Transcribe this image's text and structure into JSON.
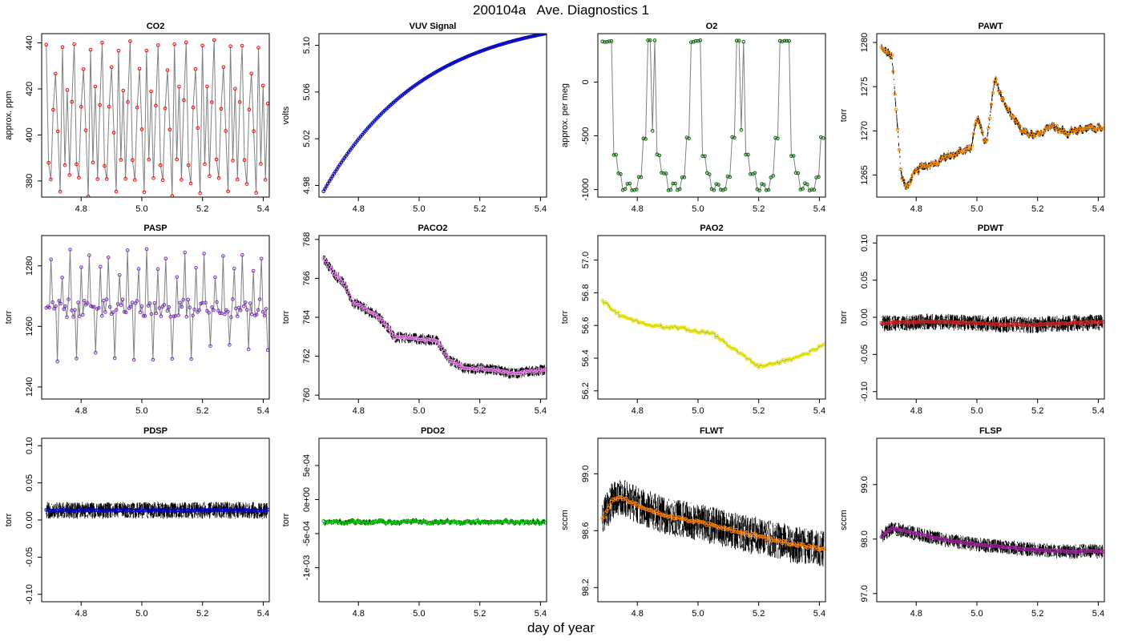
{
  "figure": {
    "title": "200104a   Ave. Diagnostics 1",
    "xlabel": "day of year"
  },
  "chart_data": [
    {
      "type": "line",
      "title": "CO2",
      "ylabel": "approx. ppm",
      "xlim": [
        4.67,
        5.42
      ],
      "ylim": [
        373,
        444
      ],
      "xticks": [
        "4.8",
        "5.0",
        "5.2",
        "5.4"
      ],
      "yticks": [
        "380",
        "400",
        "420",
        "440"
      ],
      "point_color": "#ff0000",
      "noise": 0,
      "pattern": "co2"
    },
    {
      "type": "line",
      "title": "VUV Signal",
      "ylabel": "volts",
      "xlim": [
        4.67,
        5.42
      ],
      "ylim": [
        4.97,
        5.11
      ],
      "xticks": [
        "4.8",
        "5.0",
        "5.2",
        "5.4"
      ],
      "yticks": [
        "4.98",
        "5.02",
        "5.06",
        "5.10"
      ],
      "point_color": "#0000cd",
      "noise": 0,
      "pattern": "vuv"
    },
    {
      "type": "line",
      "title": "O2",
      "ylabel": "approx. per meg",
      "xlim": [
        4.67,
        5.42
      ],
      "ylim": [
        -1070,
        450
      ],
      "xticks": [
        "4.8",
        "5.0",
        "5.2",
        "5.4"
      ],
      "yticks": [
        "-1000",
        "-500",
        "0"
      ],
      "point_color": "#006400",
      "noise": 0,
      "pattern": "o2"
    },
    {
      "type": "line",
      "title": "PAWT",
      "ylabel": "torr",
      "xlim": [
        4.67,
        5.42
      ],
      "ylim": [
        1262.5,
        1281
      ],
      "xticks": [
        "4.8",
        "5.0",
        "5.2",
        "5.4"
      ],
      "yticks": [
        "1265",
        "1270",
        "1275",
        "1280"
      ],
      "point_color": "#ff8c00",
      "noise": 0.45,
      "pattern": "pawt"
    },
    {
      "type": "line",
      "title": "PASP",
      "ylabel": "torr",
      "xlim": [
        4.67,
        5.42
      ],
      "ylim": [
        1236,
        1290
      ],
      "xticks": [
        "4.8",
        "5.0",
        "5.2",
        "5.4"
      ],
      "yticks": [
        "1240",
        "1260",
        "1280"
      ],
      "point_color": "#7b2fbe",
      "noise": 0,
      "pattern": "pasp"
    },
    {
      "type": "line",
      "title": "PACO2",
      "ylabel": "torr",
      "xlim": [
        4.67,
        5.42
      ],
      "ylim": [
        759.8,
        768.2
      ],
      "xticks": [
        "4.8",
        "5.0",
        "5.2",
        "5.4"
      ],
      "yticks": [
        "760",
        "762",
        "764",
        "766",
        "768"
      ],
      "point_color": "#ee82ee",
      "noise": 0.28,
      "pattern": "paco2"
    },
    {
      "type": "line",
      "title": "PAO2",
      "ylabel": "torr",
      "xlim": [
        4.67,
        5.42
      ],
      "ylim": [
        56.15,
        57.15
      ],
      "xticks": [
        "4.8",
        "5.0",
        "5.2",
        "5.4"
      ],
      "yticks": [
        "56.2",
        "56.4",
        "56.6",
        "56.8",
        "57.0"
      ],
      "point_color": "#e5e500",
      "noise": 0,
      "pattern": "pao2"
    },
    {
      "type": "line",
      "title": "PDWT",
      "ylabel": "torr",
      "xlim": [
        4.67,
        5.42
      ],
      "ylim": [
        -0.11,
        0.11
      ],
      "xticks": [
        "4.8",
        "5.0",
        "5.2",
        "5.4"
      ],
      "yticks": [
        "-0.10",
        "-0.05",
        "0.00",
        "0.05",
        "0.10"
      ],
      "point_color": "#cc2222",
      "noise": 0.011,
      "pattern": "pdwt"
    },
    {
      "type": "line",
      "title": "PDSP",
      "ylabel": "torr",
      "xlim": [
        4.67,
        5.42
      ],
      "ylim": [
        -0.11,
        0.11
      ],
      "xticks": [
        "4.8",
        "5.0",
        "5.2",
        "5.4"
      ],
      "yticks": [
        "-0.10",
        "-0.05",
        "0.00",
        "0.05",
        "0.10"
      ],
      "point_color": "#0000cd",
      "noise": 0.011,
      "pattern": "pdsp"
    },
    {
      "type": "line",
      "title": "PDO2",
      "ylabel": "torr",
      "xlim": [
        4.67,
        5.42
      ],
      "ylim": [
        -0.0015,
        0.0009
      ],
      "xticks": [
        "4.8",
        "5.0",
        "5.2",
        "5.4"
      ],
      "yticks": [
        "-1e-03",
        "-5e-04",
        "0e+00",
        "5e-04"
      ],
      "point_color": "#00cd00",
      "noise": 4e-05,
      "pattern": "pdo2"
    },
    {
      "type": "line",
      "title": "FLWT",
      "ylabel": "sccm",
      "xlim": [
        4.67,
        5.42
      ],
      "ylim": [
        98.1,
        99.25
      ],
      "xticks": [
        "4.8",
        "5.0",
        "5.2",
        "5.4"
      ],
      "yticks": [
        "98.2",
        "98.6",
        "99.0"
      ],
      "point_color": "#ff7f00",
      "noise": 0.13,
      "pattern": "flwt"
    },
    {
      "type": "line",
      "title": "FLSP",
      "ylabel": "sccm",
      "xlim": [
        4.67,
        5.42
      ],
      "ylim": [
        96.85,
        99.85
      ],
      "xticks": [
        "4.8",
        "5.0",
        "5.2",
        "5.4"
      ],
      "yticks": [
        "97.0",
        "98.0",
        "99.0"
      ],
      "point_color": "#a020a0",
      "noise": 0.13,
      "pattern": "flsp"
    }
  ]
}
